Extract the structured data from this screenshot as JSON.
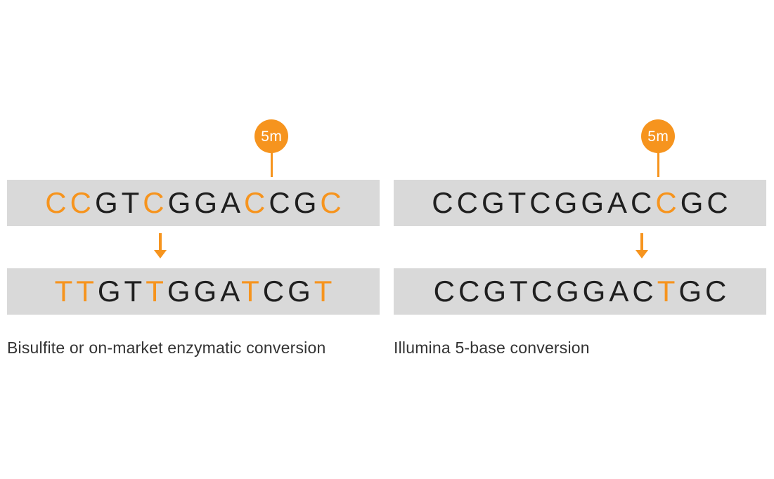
{
  "colors": {
    "accent": "#F6941E",
    "bar_bg": "#D9D9D9",
    "base_color": "#1F1F1F",
    "caption_color": "#333333",
    "marker_label_color": "#FFFFFF",
    "page_bg": "#FFFFFF"
  },
  "panels": [
    {
      "name": "bisulfite-or-enzymatic-conversion",
      "marker": {
        "label": "5m",
        "target_letter_index": 9
      },
      "top_sequence": {
        "text": "CCGTCGGACCGC",
        "highlights": [
          0,
          1,
          4,
          8,
          11
        ]
      },
      "bottom_sequence": {
        "text": "TTGTTGGATCGT",
        "highlights": [
          0,
          1,
          4,
          8,
          11
        ]
      },
      "caption": "Bisulfite or on-market enzymatic conversion"
    },
    {
      "name": "illumina-5-base-conversion",
      "marker": {
        "label": "5m",
        "target_letter_index": 9
      },
      "top_sequence": {
        "text": "CCGTCGGACCGC",
        "highlights": [
          9
        ]
      },
      "bottom_sequence": {
        "text": "CCGTCGGACTGC",
        "highlights": [
          9
        ]
      },
      "caption": "Illumina 5-base conversion"
    }
  ]
}
